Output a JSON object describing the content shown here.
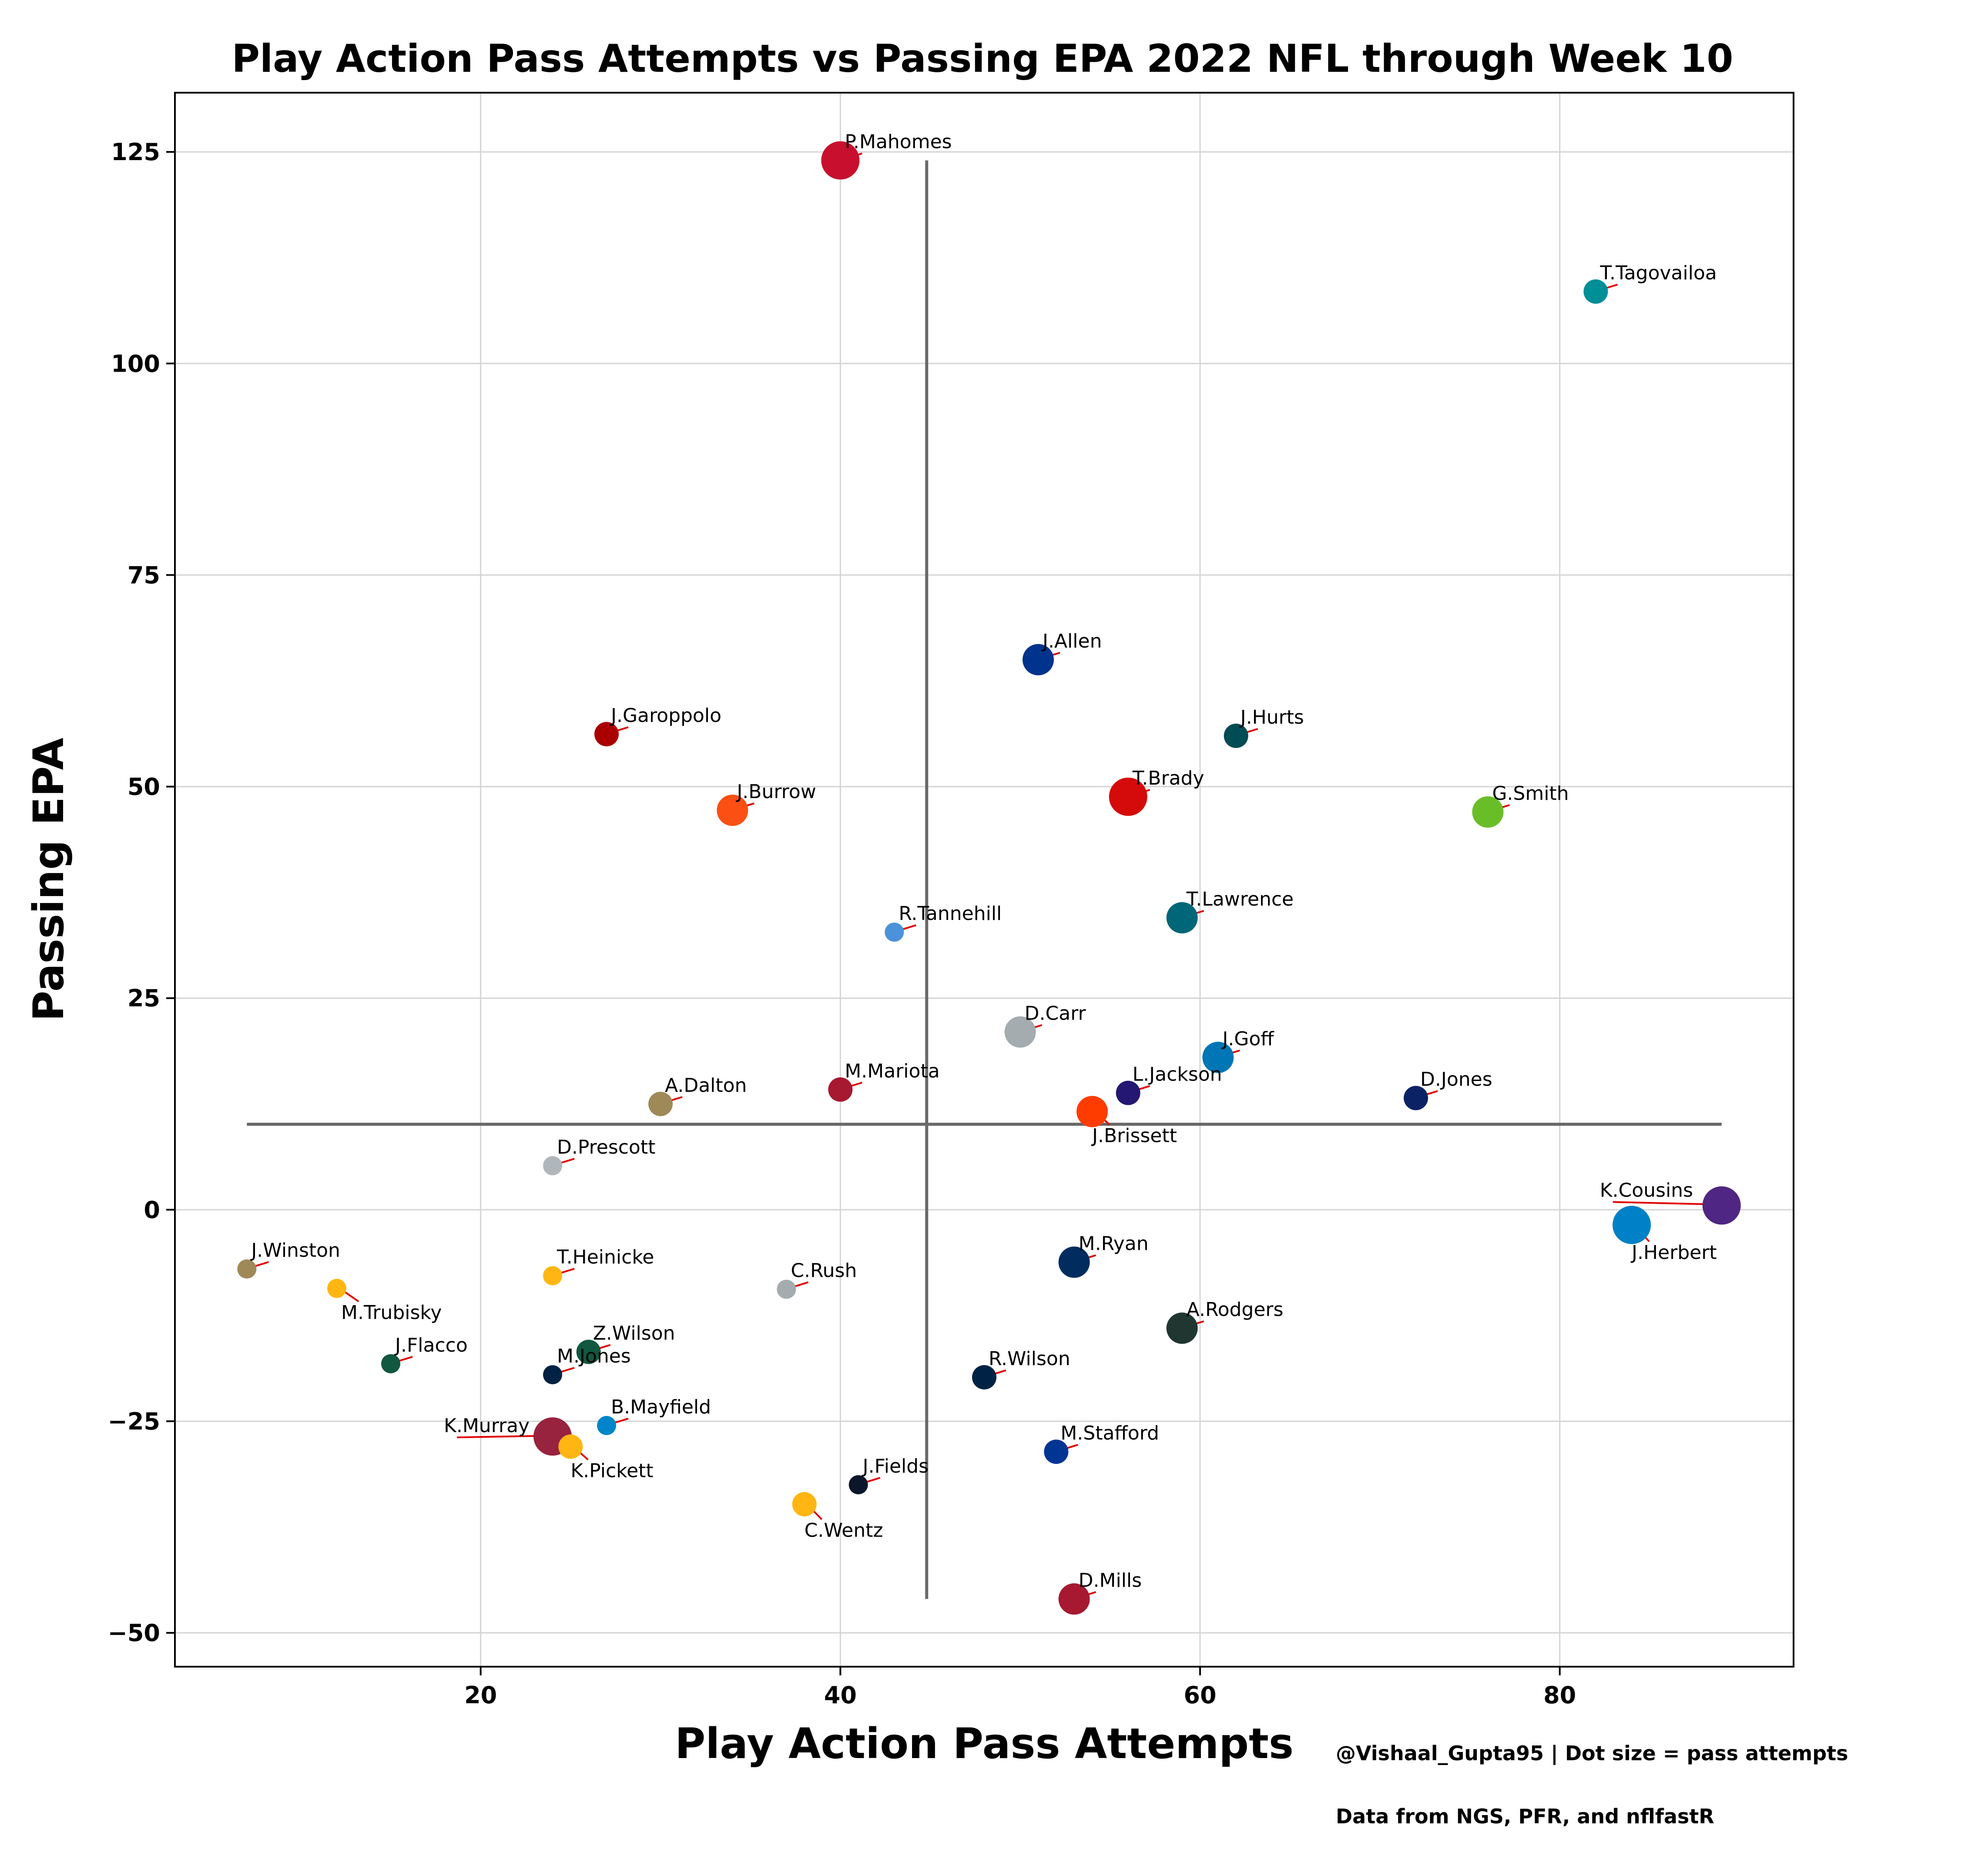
{
  "chart_data": {
    "type": "scatter",
    "title": "Play Action Pass Attempts vs Passing EPA 2022 NFL through Week 10",
    "xlabel": "Play Action Pass Attempts",
    "ylabel": "Passing EPA",
    "xlim": [
      3,
      93
    ],
    "ylim": [
      -54,
      132
    ],
    "xticks": [
      20,
      40,
      60,
      80
    ],
    "yticks": [
      125,
      100,
      75,
      50,
      25,
      0,
      -25,
      -50
    ],
    "ytick_labels": [
      "125",
      "100",
      "75",
      "50",
      "25",
      "0",
      "−25",
      "−50"
    ],
    "grid": true,
    "mean_lines": {
      "x": 44.8,
      "y": 10.1
    },
    "annotation_arrow_color": "#e00000",
    "size_note": "Dot size = pass attempts",
    "points": [
      {
        "label": "P.Mahomes",
        "x": 40,
        "y": 124,
        "size": 3,
        "color": "#c8102e"
      },
      {
        "label": "T.Tagovailoa",
        "x": 82,
        "y": 108.5,
        "size": 1,
        "color": "#008e97"
      },
      {
        "label": "J.Allen",
        "x": 51,
        "y": 65,
        "size": 2,
        "color": "#00338d"
      },
      {
        "label": "J.Garoppolo",
        "x": 27,
        "y": 56.2,
        "size": 1,
        "color": "#aa0000"
      },
      {
        "label": "J.Hurts",
        "x": 62,
        "y": 56,
        "size": 1,
        "color": "#004c54"
      },
      {
        "label": "J.Burrow",
        "x": 34,
        "y": 47.2,
        "size": 2,
        "color": "#fb4f14"
      },
      {
        "label": "T.Brady",
        "x": 56,
        "y": 48.8,
        "size": 3,
        "color": "#d50a0a"
      },
      {
        "label": "G.Smith",
        "x": 76,
        "y": 47,
        "size": 2,
        "color": "#69be28"
      },
      {
        "label": "T.Lawrence",
        "x": 59,
        "y": 34.5,
        "size": 2,
        "color": "#006778"
      },
      {
        "label": "R.Tannehill",
        "x": 43,
        "y": 32.8,
        "size": 0,
        "color": "#4b92db"
      },
      {
        "label": "D.Carr",
        "x": 50,
        "y": 21,
        "size": 2,
        "color": "#a5acaf"
      },
      {
        "label": "J.Goff",
        "x": 61,
        "y": 18,
        "size": 2,
        "color": "#0076b6"
      },
      {
        "label": "M.Mariota",
        "x": 40,
        "y": 14.2,
        "size": 1,
        "color": "#a71930"
      },
      {
        "label": "L.Jackson",
        "x": 56,
        "y": 13.8,
        "size": 1,
        "color": "#241773"
      },
      {
        "label": "D.Jones",
        "x": 72,
        "y": 13.2,
        "size": 1,
        "color": "#0b2265"
      },
      {
        "label": "A.Dalton",
        "x": 30,
        "y": 12.5,
        "size": 1,
        "color": "#9f8958"
      },
      {
        "label": "J.Brissett",
        "x": 54,
        "y": 11.6,
        "size": 2,
        "color": "#ff3c00"
      },
      {
        "label": "D.Prescott",
        "x": 24,
        "y": 5.2,
        "size": 0,
        "color": "#b0b7bc"
      },
      {
        "label": "K.Cousins",
        "x": 89,
        "y": 0.5,
        "size": 3,
        "color": "#4f2683"
      },
      {
        "label": "J.Herbert",
        "x": 84,
        "y": -1.8,
        "size": 3,
        "color": "#0080c6"
      },
      {
        "label": "J.Winston",
        "x": 7,
        "y": -7,
        "size": 0,
        "color": "#9f8958"
      },
      {
        "label": "T.Heinicke",
        "x": 24,
        "y": -7.8,
        "size": 0,
        "color": "#ffb612"
      },
      {
        "label": "M.Trubisky",
        "x": 12,
        "y": -9.3,
        "size": 0,
        "color": "#ffb612"
      },
      {
        "label": "C.Rush",
        "x": 37,
        "y": -9.4,
        "size": 0,
        "color": "#a5acaf"
      },
      {
        "label": "M.Ryan",
        "x": 53,
        "y": -6.2,
        "size": 2,
        "color": "#002c5f"
      },
      {
        "label": "A.Rodgers",
        "x": 59,
        "y": -14,
        "size": 2,
        "color": "#203731"
      },
      {
        "label": "Z.Wilson",
        "x": 26,
        "y": -16.8,
        "size": 1,
        "color": "#125740"
      },
      {
        "label": "J.Flacco",
        "x": 15,
        "y": -18.2,
        "size": 0,
        "color": "#125740"
      },
      {
        "label": "M.Jones",
        "x": 24,
        "y": -19.5,
        "size": 0,
        "color": "#002244"
      },
      {
        "label": "R.Wilson",
        "x": 48,
        "y": -19.8,
        "size": 1,
        "color": "#002244"
      },
      {
        "label": "B.Mayfield",
        "x": 27,
        "y": -25.5,
        "size": 0,
        "color": "#0085ca"
      },
      {
        "label": "K.Murray",
        "x": 24,
        "y": -26.8,
        "size": 3,
        "color": "#97233f"
      },
      {
        "label": "K.Pickett",
        "x": 25,
        "y": -28,
        "size": 1,
        "color": "#ffb612"
      },
      {
        "label": "M.Stafford",
        "x": 52,
        "y": -28.6,
        "size": 1,
        "color": "#003594"
      },
      {
        "label": "J.Fields",
        "x": 41,
        "y": -32.5,
        "size": 0,
        "color": "#0b162a"
      },
      {
        "label": "C.Wentz",
        "x": 38,
        "y": -34.8,
        "size": 1,
        "color": "#ffb612"
      },
      {
        "label": "D.Mills",
        "x": 53,
        "y": -46,
        "size": 2,
        "color": "#a71930"
      }
    ]
  },
  "footer": {
    "credit": "@Vishaal_Gupta95 | Dot size = pass attempts",
    "source": "Data from NGS, PFR, and nflfastR"
  }
}
